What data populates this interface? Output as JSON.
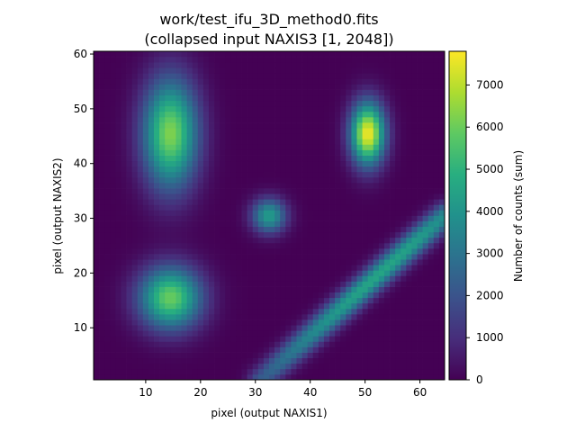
{
  "chart_data": {
    "type": "heatmap",
    "title": "work/test_ifu_3D_method0.fits",
    "subtitle": "(collapsed input NAXIS3 [1, 2048])",
    "xlabel": "pixel (output NAXIS1)",
    "ylabel": "pixel (output NAXIS2)",
    "colorbar_label": "Number of counts (sum)",
    "colormap": "viridis",
    "xlim": [
      0.5,
      64.5
    ],
    "ylim": [
      0.5,
      60.5
    ],
    "zlim": [
      0,
      7800
    ],
    "xticks": [
      10,
      20,
      30,
      40,
      50,
      60
    ],
    "yticks": [
      10,
      20,
      30,
      40,
      50,
      60
    ],
    "cticks": [
      0,
      1000,
      2000,
      3000,
      4000,
      5000,
      6000,
      7000
    ],
    "grid": false,
    "components": [
      {
        "kind": "gaussian",
        "x": 14.5,
        "y": 45.5,
        "sx": 3.5,
        "sy": 7.0,
        "peak": 6300
      },
      {
        "kind": "gaussian",
        "x": 14.5,
        "y": 15.5,
        "sx": 4.0,
        "sy": 4.0,
        "peak": 6000
      },
      {
        "kind": "gaussian",
        "x": 50.5,
        "y": 45.5,
        "sx": 2.2,
        "sy": 4.0,
        "peak": 7700
      },
      {
        "kind": "gaussian",
        "x": 32.5,
        "y": 30.5,
        "sx": 2.2,
        "sy": 2.2,
        "peak": 4300
      },
      {
        "kind": "ridge",
        "x0": 31,
        "y0": 0.5,
        "x1": 64.5,
        "y1": 30.5,
        "sigma": 1.6,
        "peak": 4600,
        "peak_at": 0.65,
        "fade": 0.55
      }
    ]
  }
}
